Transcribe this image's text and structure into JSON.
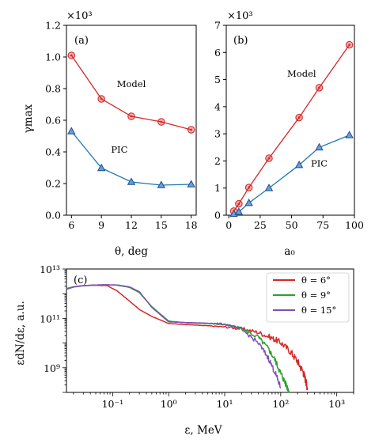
{
  "chart_data": [
    {
      "panel": "(a)",
      "type": "line",
      "x": [
        6,
        9,
        12,
        15,
        18
      ],
      "xlim": [
        5.5,
        18.5
      ],
      "ylim": [
        0,
        1.2
      ],
      "xticks": [
        6,
        9,
        12,
        15,
        18
      ],
      "yticks": [
        0.0,
        0.2,
        0.4,
        0.6,
        0.8,
        1.0,
        1.2
      ],
      "xtick_labels": [
        "6",
        "9",
        "12",
        "15",
        "18"
      ],
      "ytick_labels": [
        "0.0",
        "0.2",
        "0.4",
        "0.6",
        "0.8",
        "1.0",
        "1.2"
      ],
      "xlabel": "θ, deg",
      "ylabel": "γmax",
      "scale_note": "×10³",
      "series": [
        {
          "name": "Model",
          "color": "#d62728",
          "marker": "circle",
          "values": [
            1.01,
            0.735,
            0.625,
            0.59,
            0.54
          ]
        },
        {
          "name": "PIC",
          "color": "#1f77b4",
          "marker": "triangle",
          "values": [
            0.53,
            0.298,
            0.21,
            0.19,
            0.195
          ]
        }
      ],
      "annotations": [
        {
          "text": "Model",
          "x": 12,
          "y": 0.81
        },
        {
          "text": "PIC",
          "x": 10.8,
          "y": 0.395
        }
      ]
    },
    {
      "panel": "(b)",
      "type": "line",
      "xlim": [
        -2,
        100
      ],
      "ylim": [
        0,
        7
      ],
      "xticks": [
        0,
        25,
        50,
        75,
        100
      ],
      "yticks": [
        0,
        1,
        2,
        3,
        4,
        5,
        6,
        7
      ],
      "xtick_labels": [
        "0",
        "25",
        "50",
        "75",
        "100"
      ],
      "ytick_labels": [
        "0",
        "1",
        "2",
        "3",
        "4",
        "5",
        "6",
        "7"
      ],
      "xlabel": "a₀",
      "scale_note": "×10³",
      "series": [
        {
          "name": "Model",
          "color": "#d62728",
          "marker": "circle",
          "x": [
            4,
            8,
            16,
            32,
            56,
            72,
            96
          ],
          "values": [
            0.15,
            0.42,
            1.02,
            2.1,
            3.6,
            4.7,
            6.28
          ]
        },
        {
          "name": "PIC",
          "color": "#1f77b4",
          "marker": "triangle",
          "x": [
            4,
            8,
            16,
            32,
            56,
            72,
            96
          ],
          "values": [
            0.05,
            0.12,
            0.45,
            1.0,
            1.85,
            2.5,
            2.95
          ]
        }
      ],
      "annotations": [
        {
          "text": "Model",
          "x": 58,
          "y": 5.1
        },
        {
          "text": "PIC",
          "x": 72,
          "y": 1.8
        }
      ]
    },
    {
      "panel": "(c)",
      "type": "line",
      "xscale": "log",
      "yscale": "log",
      "xlim": [
        0.015,
        2000
      ],
      "ylim": [
        100000000.0,
        10000000000000.0
      ],
      "xtick_labels": [
        "10⁻¹",
        "10⁰",
        "10¹",
        "10²",
        "10³"
      ],
      "ytick_labels": [
        "10⁹",
        "10¹¹",
        "10¹³"
      ],
      "xlabel": "ε, MeV",
      "ylabel": "εdN/dε, a.u.",
      "legend_position": "top-right",
      "series": [
        {
          "name": "θ = 6°",
          "color": "#d62728",
          "x": [
            0.015,
            0.02,
            0.03,
            0.05,
            0.08,
            0.12,
            0.2,
            0.3,
            0.5,
            1,
            2,
            5,
            10,
            20,
            40,
            70,
            100,
            150,
            200,
            250,
            280,
            300
          ],
          "values": [
            1600000000000.0,
            1900000000000.0,
            2150000000000.0,
            2200000000000.0,
            2100000000000.0,
            1300000000000.0,
            500000000000.0,
            230000000000.0,
            120000000000.0,
            62000000000.0,
            56000000000.0,
            50000000000.0,
            45000000000.0,
            38000000000.0,
            27000000000.0,
            16000000000.0,
            10500000000.0,
            4500000000.0,
            1800000000.0,
            700000000.0,
            300000000.0,
            150000000.0
          ]
        },
        {
          "name": "θ = 9°",
          "color": "#2ca02c",
          "x": [
            0.015,
            0.02,
            0.03,
            0.05,
            0.08,
            0.12,
            0.2,
            0.3,
            0.5,
            1,
            2,
            5,
            10,
            20,
            40,
            60,
            80,
            100,
            120,
            140
          ],
          "values": [
            1600000000000.0,
            1900000000000.0,
            2100000000000.0,
            2250000000000.0,
            2300000000000.0,
            2200000000000.0,
            1800000000000.0,
            1100000000000.0,
            300000000000.0,
            78000000000.0,
            66000000000.0,
            62000000000.0,
            56000000000.0,
            38000000000.0,
            17000000000.0,
            6000000000.0,
            2000000000.0,
            600000000.0,
            250000000.0,
            120000000.0
          ]
        },
        {
          "name": "θ = 15°",
          "color": "#7b4fb8",
          "x": [
            0.015,
            0.02,
            0.03,
            0.05,
            0.08,
            0.12,
            0.2,
            0.3,
            0.5,
            1,
            2,
            5,
            10,
            20,
            40,
            60,
            80,
            100
          ],
          "values": [
            1500000000000.0,
            1850000000000.0,
            2100000000000.0,
            2250000000000.0,
            2300000000000.0,
            2250000000000.0,
            1900000000000.0,
            1200000000000.0,
            280000000000.0,
            72000000000.0,
            68000000000.0,
            64000000000.0,
            59000000000.0,
            36000000000.0,
            10000000000.0,
            2500000000.0,
            600000000.0,
            150000000.0
          ]
        }
      ]
    }
  ]
}
